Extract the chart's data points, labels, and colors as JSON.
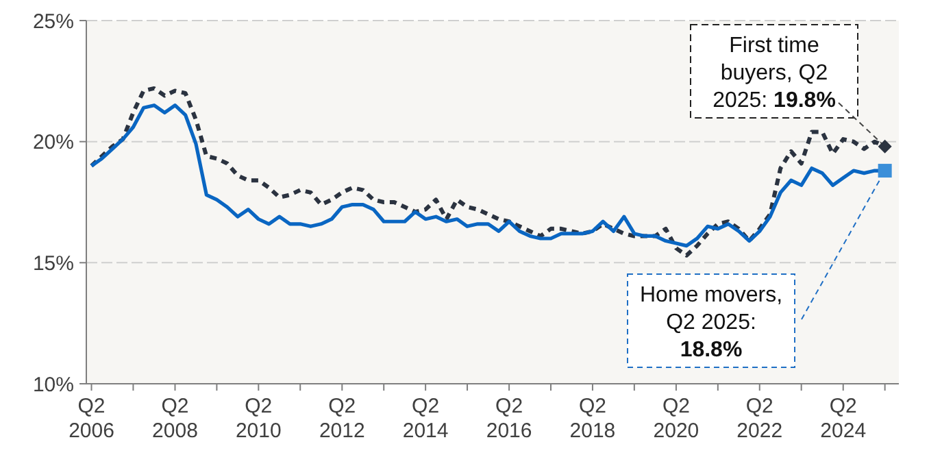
{
  "chart_data": {
    "type": "line",
    "x": [
      "2006-04",
      "2006-07",
      "2006-10",
      "2007-01",
      "2007-04",
      "2007-07",
      "2007-10",
      "2008-01",
      "2008-04",
      "2008-07",
      "2008-10",
      "2009-01",
      "2009-04",
      "2009-07",
      "2009-10",
      "2010-01",
      "2010-04",
      "2010-07",
      "2010-10",
      "2011-01",
      "2011-04",
      "2011-07",
      "2011-10",
      "2012-01",
      "2012-04",
      "2012-07",
      "2012-10",
      "2013-01",
      "2013-04",
      "2013-07",
      "2013-10",
      "2014-01",
      "2014-04",
      "2014-07",
      "2014-10",
      "2015-01",
      "2015-04",
      "2015-07",
      "2015-10",
      "2016-01",
      "2016-04",
      "2016-07",
      "2016-10",
      "2017-01",
      "2017-04",
      "2017-07",
      "2017-10",
      "2018-01",
      "2018-04",
      "2018-07",
      "2018-10",
      "2019-01",
      "2019-04",
      "2019-07",
      "2019-10",
      "2020-01",
      "2020-04",
      "2020-07",
      "2020-10",
      "2021-01",
      "2021-04",
      "2021-07",
      "2021-10",
      "2022-01",
      "2022-04",
      "2022-07",
      "2022-10",
      "2023-01",
      "2023-04",
      "2023-07",
      "2023-10",
      "2024-01",
      "2024-04",
      "2024-07",
      "2024-10",
      "2025-01",
      "2025-04"
    ],
    "series": [
      {
        "color": "#2b3340",
        "line_style": "dashed",
        "values": [
          19.0,
          19.4,
          19.8,
          20.1,
          21.2,
          22.1,
          22.2,
          21.9,
          22.1,
          22.0,
          20.9,
          19.4,
          19.3,
          19.1,
          18.6,
          18.4,
          18.4,
          18.1,
          17.7,
          17.8,
          18.0,
          17.9,
          17.4,
          17.6,
          17.9,
          18.1,
          18.0,
          17.6,
          17.5,
          17.5,
          17.3,
          17.1,
          17.2,
          17.6,
          16.8,
          17.6,
          17.3,
          17.2,
          17.0,
          16.8,
          16.7,
          16.5,
          16.3,
          16.1,
          16.4,
          16.4,
          16.3,
          16.2,
          16.3,
          16.6,
          16.4,
          16.2,
          16.1,
          16.1,
          16.1,
          16.4,
          15.6,
          15.3,
          15.7,
          16.2,
          16.6,
          16.7,
          16.4,
          15.9,
          16.4,
          17.0,
          18.9,
          19.6,
          19.1,
          20.4,
          20.4,
          19.5,
          20.1,
          20.0,
          19.7,
          20.0,
          19.8
        ]
      },
      {
        "color": "#0a66c2",
        "line_style": "solid",
        "values": [
          19.0,
          19.3,
          19.7,
          20.1,
          20.6,
          21.4,
          21.5,
          21.2,
          21.5,
          21.1,
          19.9,
          17.8,
          17.6,
          17.3,
          16.9,
          17.2,
          16.8,
          16.6,
          16.9,
          16.6,
          16.6,
          16.5,
          16.6,
          16.8,
          17.3,
          17.4,
          17.4,
          17.2,
          16.7,
          16.7,
          16.7,
          17.1,
          16.8,
          16.9,
          16.7,
          16.8,
          16.5,
          16.6,
          16.6,
          16.3,
          16.7,
          16.3,
          16.1,
          16.0,
          16.0,
          16.2,
          16.2,
          16.2,
          16.3,
          16.7,
          16.3,
          16.9,
          16.2,
          16.1,
          16.1,
          15.9,
          15.8,
          15.7,
          16.0,
          16.5,
          16.4,
          16.6,
          16.3,
          15.9,
          16.3,
          16.9,
          17.9,
          18.4,
          18.2,
          18.9,
          18.7,
          18.2,
          18.5,
          18.8,
          18.7,
          18.8,
          18.8
        ]
      }
    ],
    "xlim": [
      "2006-02-15",
      "2025-08-01"
    ],
    "xticks": [
      {
        "value": "2006-04",
        "label": "Q2 2006"
      },
      {
        "value": "2007-04",
        "label": null
      },
      {
        "value": "2008-04",
        "label": "Q2 2008"
      },
      {
        "value": "2009-04",
        "label": null
      },
      {
        "value": "2010-04",
        "label": "Q2 2010"
      },
      {
        "value": "2011-04",
        "label": null
      },
      {
        "value": "2012-04",
        "label": "Q2 2012"
      },
      {
        "value": "2013-04",
        "label": null
      },
      {
        "value": "2014-04",
        "label": "Q2 2014"
      },
      {
        "value": "2015-04",
        "label": null
      },
      {
        "value": "2016-04",
        "label": "Q2 2016"
      },
      {
        "value": "2017-04",
        "label": null
      },
      {
        "value": "2018-04",
        "label": "Q2 2018"
      },
      {
        "value": "2019-04",
        "label": null
      },
      {
        "value": "2020-04",
        "label": "Q2 2020"
      },
      {
        "value": "2021-04",
        "label": null
      },
      {
        "value": "2022-04",
        "label": "Q2 2022"
      },
      {
        "value": "2023-04",
        "label": null
      },
      {
        "value": "2024-04",
        "label": "Q2 2024"
      },
      {
        "value": "2025-04",
        "label": null
      }
    ],
    "ylim": [
      10,
      25
    ],
    "yticks": [
      {
        "value": 10,
        "label": "10%"
      },
      {
        "value": 15,
        "label": "15%"
      },
      {
        "value": 20,
        "label": "20%"
      },
      {
        "value": 25,
        "label": "25%"
      }
    ],
    "grid": "y",
    "marker": "none",
    "annotations": [
      {
        "text": "First time buyers, Q2 2025: 19.8%",
        "x": "2025-04",
        "y": 19.8
      },
      {
        "text": "Home movers, Q2 2025: 18.8%",
        "x": "2025-04",
        "y": 18.8
      }
    ]
  }
}
